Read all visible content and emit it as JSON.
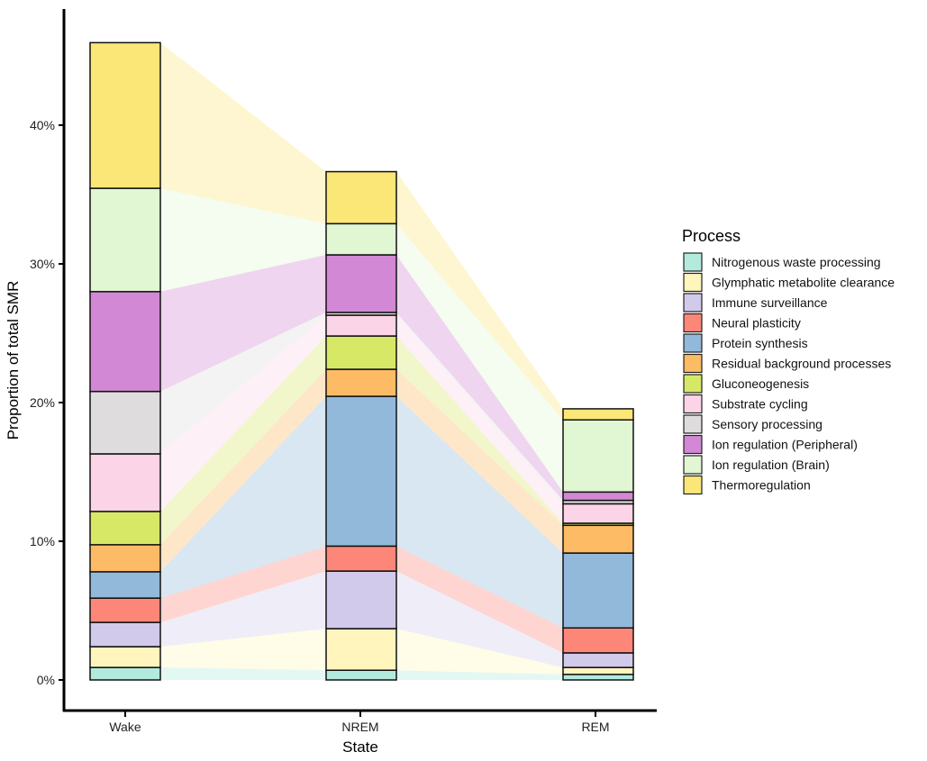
{
  "chart_data": {
    "type": "bar",
    "subtype": "stacked-bar-with-alluvial-flows",
    "xlabel": "State",
    "ylabel": "Proportion of total SMR",
    "ylim": [
      -2.2,
      48.5
    ],
    "yticks": [
      0,
      10,
      20,
      30,
      40
    ],
    "ytick_labels": [
      "0%",
      "10%",
      "20%",
      "30%",
      "40%"
    ],
    "grid": false,
    "categories": [
      "Wake",
      "NREM",
      "REM"
    ],
    "legend": {
      "title": "Process",
      "position": "right"
    },
    "series": [
      {
        "name": "Nitrogenous waste processing",
        "color": "#b2ebde",
        "values": [
          0.9,
          0.7,
          0.4
        ]
      },
      {
        "name": "Glymphatic metabolite clearance",
        "color": "#fff5bd",
        "values": [
          1.5,
          3.0,
          0.5
        ]
      },
      {
        "name": "Immune surveillance",
        "color": "#d2caeb",
        "values": [
          1.75,
          4.15,
          1.05
        ]
      },
      {
        "name": "Neural plasticity",
        "color": "#fc8778",
        "values": [
          1.75,
          1.8,
          1.8
        ]
      },
      {
        "name": "Protein synthesis",
        "color": "#93b9da",
        "values": [
          1.9,
          10.8,
          5.4
        ]
      },
      {
        "name": "Residual background processes",
        "color": "#fdbb65",
        "values": [
          1.95,
          1.95,
          2.0
        ]
      },
      {
        "name": "Gluconeogenesis",
        "color": "#d6e866",
        "values": [
          2.4,
          2.4,
          0.15
        ]
      },
      {
        "name": "Substrate cycling",
        "color": "#fcd4e7",
        "values": [
          4.15,
          1.5,
          1.4
        ]
      },
      {
        "name": "Sensory processing",
        "color": "#dedcdd",
        "values": [
          4.5,
          0.2,
          0.25
        ]
      },
      {
        "name": "Ion regulation (Peripheral)",
        "color": "#d288d4",
        "values": [
          7.2,
          4.15,
          0.6
        ]
      },
      {
        "name": "Ion regulation (Brain)",
        "color": "#e1f6d3",
        "values": [
          7.45,
          2.25,
          5.2
        ]
      },
      {
        "name": "Thermoregulation",
        "color": "#fbe678",
        "values": [
          10.5,
          3.75,
          0.8
        ]
      }
    ]
  }
}
